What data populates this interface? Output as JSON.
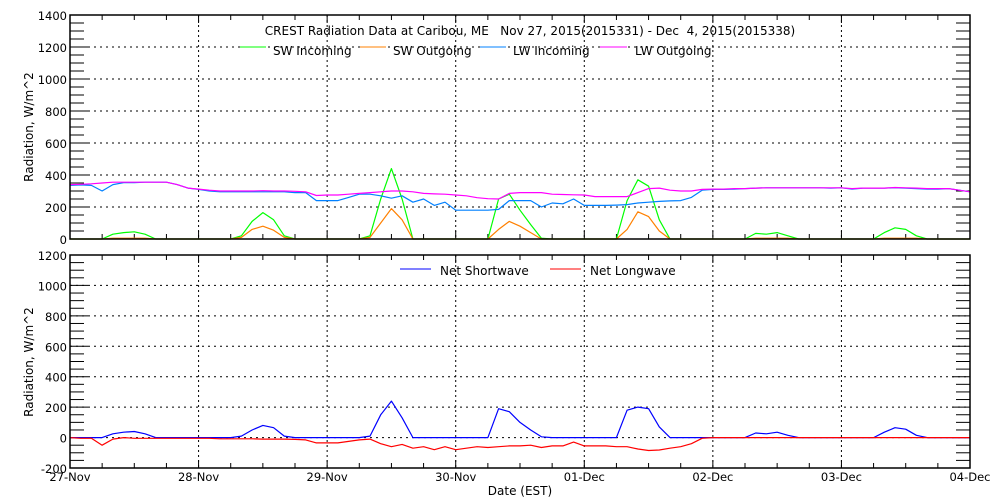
{
  "title": "CREST Radiation Data at Caribou, ME   Nov 27, 2015(2015331) - Dec  4, 2015(2015338)",
  "colors": {
    "sw_incoming": "#00ff00",
    "sw_outgoing": "#ff8000",
    "lw_incoming": "#0080ff",
    "lw_outgoing": "#ff00ff",
    "net_shortwave": "#0000ff",
    "net_longwave": "#ff0000"
  },
  "chart_data": [
    {
      "type": "line",
      "title": "CREST Radiation Data at Caribou, ME   Nov 27, 2015(2015331) - Dec  4, 2015(2015338)",
      "xlabel": "",
      "ylabel": "Radiation, W/m^2",
      "ylim": [
        0,
        1400
      ],
      "yticks": [
        0,
        200,
        400,
        600,
        800,
        1000,
        1200,
        1400
      ],
      "grid": true,
      "legend": "top-center",
      "xlim": [
        "11/27 00:00",
        "12/04 00:00"
      ],
      "x_tick_labels": [],
      "series": [
        {
          "name": "SW Incoming",
          "color": "#00ff00",
          "values": [
            0,
            0,
            0,
            0,
            30,
            40,
            45,
            30,
            0,
            0,
            0,
            0,
            0,
            0,
            0,
            0,
            20,
            110,
            165,
            120,
            20,
            0,
            0,
            0,
            0,
            0,
            0,
            0,
            20,
            250,
            440,
            250,
            0,
            0,
            0,
            0,
            0,
            0,
            0,
            0,
            250,
            280,
            180,
            90,
            5,
            0,
            0,
            0,
            0,
            0,
            0,
            0,
            240,
            370,
            330,
            120,
            0,
            0,
            0,
            0,
            0,
            0,
            0,
            0,
            35,
            30,
            40,
            20,
            0,
            0,
            0,
            0,
            0,
            0,
            0,
            0,
            40,
            70,
            60,
            20,
            0,
            0,
            0,
            0,
            0
          ]
        },
        {
          "name": "SW Outgoing",
          "color": "#ff8000",
          "values": [
            0,
            0,
            0,
            0,
            5,
            5,
            5,
            5,
            0,
            0,
            0,
            0,
            0,
            0,
            0,
            0,
            10,
            60,
            80,
            55,
            10,
            0,
            0,
            0,
            0,
            0,
            0,
            0,
            10,
            100,
            190,
            120,
            0,
            0,
            0,
            0,
            0,
            0,
            0,
            0,
            60,
            110,
            80,
            40,
            0,
            0,
            0,
            0,
            0,
            0,
            0,
            0,
            60,
            170,
            140,
            50,
            0,
            0,
            0,
            0,
            0,
            0,
            0,
            0,
            5,
            5,
            5,
            5,
            0,
            0,
            0,
            0,
            0,
            0,
            0,
            0,
            5,
            5,
            5,
            5,
            0,
            0,
            0,
            0,
            0
          ]
        },
        {
          "name": "LW Incoming",
          "color": "#0080ff",
          "values": [
            335,
            338,
            335,
            300,
            340,
            352,
            352,
            355,
            355,
            355,
            340,
            318,
            310,
            300,
            295,
            295,
            295,
            295,
            295,
            295,
            295,
            290,
            290,
            240,
            240,
            240,
            260,
            280,
            280,
            270,
            255,
            270,
            230,
            250,
            210,
            230,
            180,
            180,
            180,
            180,
            185,
            240,
            240,
            240,
            200,
            225,
            220,
            250,
            210,
            210,
            210,
            212,
            215,
            225,
            230,
            235,
            238,
            240,
            260,
            305,
            310,
            310,
            312,
            315,
            318,
            320,
            320,
            320,
            320,
            320,
            320,
            318,
            320,
            312,
            318,
            318,
            318,
            320,
            318,
            315,
            312,
            312,
            315,
            305,
            295
          ]
        },
        {
          "name": "LW Outgoing",
          "color": "#ff00ff",
          "values": [
            340,
            342,
            345,
            350,
            355,
            355,
            355,
            355,
            355,
            355,
            340,
            318,
            312,
            305,
            300,
            300,
            300,
            300,
            302,
            300,
            300,
            298,
            295,
            272,
            275,
            275,
            280,
            285,
            290,
            295,
            300,
            300,
            295,
            285,
            282,
            280,
            275,
            270,
            258,
            252,
            250,
            285,
            290,
            290,
            290,
            280,
            278,
            276,
            275,
            265,
            265,
            265,
            265,
            290,
            315,
            318,
            305,
            300,
            300,
            310,
            312,
            312,
            315,
            315,
            318,
            320,
            320,
            320,
            320,
            320,
            320,
            320,
            320,
            315,
            318,
            318,
            318,
            322,
            320,
            318,
            315,
            315,
            315,
            305,
            295
          ]
        }
      ]
    },
    {
      "type": "line",
      "xlabel": "Date (EST)",
      "ylabel": "Radiation, W/m^2",
      "ylim": [
        -200,
        1200
      ],
      "yticks": [
        -200,
        0,
        200,
        400,
        600,
        800,
        1000,
        1200
      ],
      "grid": true,
      "legend": "top-center",
      "xlim": [
        "11/27 00:00",
        "12/04 00:00"
      ],
      "x_tick_labels": [
        "27-Nov",
        "28-Nov",
        "29-Nov",
        "30-Nov",
        "01-Dec",
        "02-Dec",
        "03-Dec",
        "04-Dec"
      ],
      "series": [
        {
          "name": "Net Shortwave",
          "color": "#0000ff",
          "values": [
            0,
            0,
            0,
            0,
            25,
            35,
            40,
            25,
            0,
            0,
            0,
            0,
            0,
            0,
            0,
            0,
            10,
            50,
            80,
            65,
            10,
            0,
            0,
            0,
            0,
            0,
            0,
            0,
            10,
            150,
            240,
            130,
            0,
            0,
            0,
            0,
            0,
            0,
            0,
            0,
            190,
            170,
            100,
            50,
            5,
            0,
            0,
            0,
            0,
            0,
            0,
            0,
            180,
            200,
            190,
            70,
            0,
            0,
            0,
            0,
            0,
            0,
            0,
            0,
            30,
            25,
            35,
            15,
            0,
            0,
            0,
            0,
            0,
            0,
            0,
            0,
            35,
            65,
            55,
            15,
            0,
            0,
            0,
            0,
            0
          ]
        },
        {
          "name": "Net Longwave",
          "color": "#ff0000",
          "values": [
            0,
            -5,
            -5,
            -50,
            -10,
            0,
            -5,
            -5,
            -5,
            -5,
            -5,
            -5,
            -5,
            -5,
            -8,
            -8,
            -8,
            -8,
            -10,
            -10,
            -10,
            -12,
            -15,
            -35,
            -35,
            -35,
            -25,
            -15,
            -10,
            -40,
            -60,
            -45,
            -70,
            -60,
            -80,
            -60,
            -80,
            -70,
            -60,
            -65,
            -60,
            -55,
            -55,
            -50,
            -65,
            -55,
            -55,
            -30,
            -55,
            -55,
            -55,
            -60,
            -60,
            -75,
            -85,
            -82,
            -70,
            -60,
            -40,
            -5,
            0,
            0,
            0,
            0,
            0,
            0,
            0,
            0,
            0,
            0,
            0,
            0,
            0,
            0,
            0,
            0,
            0,
            0,
            0,
            0,
            0,
            0,
            0,
            0,
            0
          ]
        }
      ]
    }
  ],
  "x": [
    "11/27 00:00",
    "11/27 02:00",
    "11/27 04:00",
    "11/27 06:00",
    "11/27 08:00",
    "11/27 10:00",
    "11/27 12:00",
    "11/27 14:00",
    "11/27 16:00",
    "11/27 18:00",
    "11/27 20:00",
    "11/27 22:00",
    "11/28 00:00",
    "11/28 02:00",
    "11/28 04:00",
    "11/28 06:00",
    "11/28 08:00",
    "11/28 10:00",
    "11/28 12:00",
    "11/28 14:00",
    "11/28 16:00",
    "11/28 18:00",
    "11/28 20:00",
    "11/28 22:00",
    "11/29 00:00",
    "11/29 02:00",
    "11/29 04:00",
    "11/29 06:00",
    "11/29 08:00",
    "11/29 10:00",
    "11/29 12:00",
    "11/29 14:00",
    "11/29 16:00",
    "11/29 18:00",
    "11/29 20:00",
    "11/29 22:00",
    "11/30 00:00",
    "11/30 02:00",
    "11/30 04:00",
    "11/30 06:00",
    "11/30 08:00",
    "11/30 10:00",
    "11/30 12:00",
    "11/30 14:00",
    "11/30 16:00",
    "11/30 18:00",
    "11/30 20:00",
    "11/30 22:00",
    "12/01 00:00",
    "12/01 02:00",
    "12/01 04:00",
    "12/01 06:00",
    "12/01 08:00",
    "12/01 10:00",
    "12/01 12:00",
    "12/01 14:00",
    "12/01 16:00",
    "12/01 18:00",
    "12/01 20:00",
    "12/01 22:00",
    "12/02 00:00",
    "12/02 02:00",
    "12/02 04:00",
    "12/02 06:00",
    "12/02 08:00",
    "12/02 10:00",
    "12/02 12:00",
    "12/02 14:00",
    "12/02 16:00",
    "12/02 18:00",
    "12/02 20:00",
    "12/02 22:00",
    "12/03 00:00",
    "12/03 02:00",
    "12/03 04:00",
    "12/03 06:00",
    "12/03 08:00",
    "12/03 10:00",
    "12/03 12:00",
    "12/03 14:00",
    "12/03 16:00",
    "12/03 18:00",
    "12/03 20:00",
    "12/03 22:00",
    "12/04 00:00"
  ]
}
